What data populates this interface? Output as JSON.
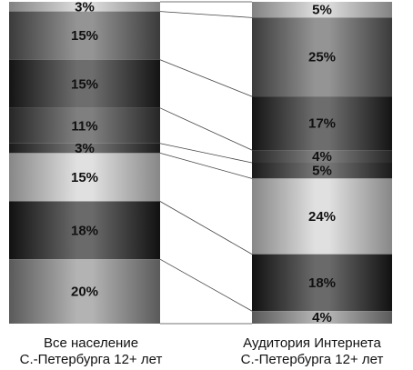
{
  "chart_data": {
    "type": "bar",
    "stacked": true,
    "percent": true,
    "value_unit": "%",
    "categories": [
      [
        "Все население",
        "С.-Петербурга 12+ лет"
      ],
      [
        "Аудитория Интернета",
        "С.-Петербурга 12+ лет"
      ]
    ],
    "stack_order": "top-to-bottom",
    "series": [
      {
        "values": [
          3,
          5
        ],
        "shade": "#c8c8c8"
      },
      {
        "values": [
          15,
          25
        ],
        "shade": "#5a5a5a"
      },
      {
        "values": [
          15,
          17
        ],
        "shade": "#1e1e1e"
      },
      {
        "values": [
          11,
          4
        ],
        "shade": "#3a3a3a"
      },
      {
        "values": [
          3,
          5
        ],
        "shade": "#2a2a2a"
      },
      {
        "values": [
          15,
          24
        ],
        "shade": "#cfcfcf"
      },
      {
        "values": [
          18,
          18
        ],
        "shade": "#1a1a1a"
      },
      {
        "values": [
          20,
          4
        ],
        "shade": "#8a8a8a"
      }
    ],
    "connector_lines": true,
    "grid": false,
    "legend": "none"
  }
}
